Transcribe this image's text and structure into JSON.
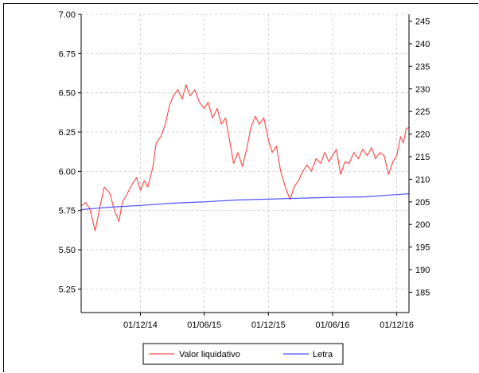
{
  "chart_data": {
    "type": "line",
    "title": "",
    "xlabel": "",
    "x_tick_labels": [
      "01/12/14",
      "01/06/15",
      "01/12/15",
      "01/06/16",
      "01/12/16"
    ],
    "x_ticks": [
      "2014-12-01",
      "2015-06-01",
      "2015-12-01",
      "2016-06-01",
      "2016-12-01"
    ],
    "xlim": [
      "2014-06-15",
      "2017-01-05"
    ],
    "y_left": {
      "lim": [
        5.1,
        7.0
      ],
      "ticks": [
        "5.25",
        "5.50",
        "5.75",
        "6.00",
        "6.25",
        "6.50",
        "6.75",
        "7.00"
      ]
    },
    "y_right": {
      "lim": [
        180.5,
        246.5
      ],
      "ticks": [
        "185",
        "190",
        "195",
        "200",
        "205",
        "210",
        "215",
        "220",
        "225",
        "230",
        "235",
        "240",
        "245"
      ]
    },
    "grid": true,
    "legend_position": "bottom",
    "series": [
      {
        "name": "Valor liquidativo",
        "axis": "left",
        "color": "#ff5050",
        "points": [
          [
            "2014-06-15",
            5.78
          ],
          [
            "2014-06-28",
            5.8
          ],
          [
            "2014-07-10",
            5.76
          ],
          [
            "2014-07-25",
            5.62
          ],
          [
            "2014-08-08",
            5.78
          ],
          [
            "2014-08-20",
            5.9
          ],
          [
            "2014-09-05",
            5.86
          ],
          [
            "2014-09-18",
            5.75
          ],
          [
            "2014-10-01",
            5.68
          ],
          [
            "2014-10-10",
            5.8
          ],
          [
            "2014-10-25",
            5.86
          ],
          [
            "2014-11-08",
            5.92
          ],
          [
            "2014-11-20",
            5.96
          ],
          [
            "2014-12-01",
            5.88
          ],
          [
            "2014-12-12",
            5.94
          ],
          [
            "2014-12-22",
            5.9
          ],
          [
            "2015-01-05",
            6.02
          ],
          [
            "2015-01-15",
            6.18
          ],
          [
            "2015-01-28",
            6.22
          ],
          [
            "2015-02-10",
            6.3
          ],
          [
            "2015-02-22",
            6.42
          ],
          [
            "2015-03-05",
            6.48
          ],
          [
            "2015-03-18",
            6.52
          ],
          [
            "2015-03-30",
            6.46
          ],
          [
            "2015-04-10",
            6.55
          ],
          [
            "2015-04-22",
            6.48
          ],
          [
            "2015-05-05",
            6.52
          ],
          [
            "2015-05-18",
            6.44
          ],
          [
            "2015-06-01",
            6.4
          ],
          [
            "2015-06-12",
            6.44
          ],
          [
            "2015-06-25",
            6.34
          ],
          [
            "2015-07-08",
            6.4
          ],
          [
            "2015-07-20",
            6.3
          ],
          [
            "2015-08-01",
            6.34
          ],
          [
            "2015-08-12",
            6.2
          ],
          [
            "2015-08-24",
            6.05
          ],
          [
            "2015-09-05",
            6.12
          ],
          [
            "2015-09-18",
            6.03
          ],
          [
            "2015-10-01",
            6.15
          ],
          [
            "2015-10-12",
            6.28
          ],
          [
            "2015-10-25",
            6.35
          ],
          [
            "2015-11-05",
            6.3
          ],
          [
            "2015-11-18",
            6.34
          ],
          [
            "2015-12-01",
            6.2
          ],
          [
            "2015-12-12",
            6.12
          ],
          [
            "2015-12-24",
            6.16
          ],
          [
            "2016-01-05",
            6.0
          ],
          [
            "2016-01-18",
            5.9
          ],
          [
            "2016-02-01",
            5.82
          ],
          [
            "2016-02-12",
            5.9
          ],
          [
            "2016-02-25",
            5.94
          ],
          [
            "2016-03-08",
            6.0
          ],
          [
            "2016-03-20",
            6.04
          ],
          [
            "2016-04-02",
            6.0
          ],
          [
            "2016-04-15",
            6.08
          ],
          [
            "2016-04-28",
            6.05
          ],
          [
            "2016-05-10",
            6.12
          ],
          [
            "2016-05-22",
            6.06
          ],
          [
            "2016-06-01",
            6.1
          ],
          [
            "2016-06-12",
            6.14
          ],
          [
            "2016-06-24",
            5.98
          ],
          [
            "2016-07-06",
            6.06
          ],
          [
            "2016-07-18",
            6.05
          ],
          [
            "2016-08-01",
            6.12
          ],
          [
            "2016-08-14",
            6.08
          ],
          [
            "2016-08-26",
            6.14
          ],
          [
            "2016-09-08",
            6.1
          ],
          [
            "2016-09-20",
            6.15
          ],
          [
            "2016-10-02",
            6.08
          ],
          [
            "2016-10-14",
            6.12
          ],
          [
            "2016-10-26",
            6.1
          ],
          [
            "2016-11-08",
            5.98
          ],
          [
            "2016-11-20",
            6.06
          ],
          [
            "2016-12-01",
            6.1
          ],
          [
            "2016-12-12",
            6.22
          ],
          [
            "2016-12-20",
            6.18
          ],
          [
            "2016-12-28",
            6.27
          ],
          [
            "2017-01-05",
            6.28
          ]
        ]
      },
      {
        "name": "Letra",
        "axis": "right",
        "color": "#5050ff",
        "points": [
          [
            "2014-06-15",
            203.3
          ],
          [
            "2014-09-01",
            203.8
          ],
          [
            "2014-12-01",
            204.2
          ],
          [
            "2015-03-01",
            204.7
          ],
          [
            "2015-06-01",
            205.0
          ],
          [
            "2015-09-01",
            205.4
          ],
          [
            "2015-12-01",
            205.6
          ],
          [
            "2016-03-01",
            205.8
          ],
          [
            "2016-06-01",
            206.0
          ],
          [
            "2016-09-01",
            206.1
          ],
          [
            "2016-12-01",
            206.6
          ],
          [
            "2017-01-05",
            206.8
          ]
        ]
      }
    ]
  }
}
